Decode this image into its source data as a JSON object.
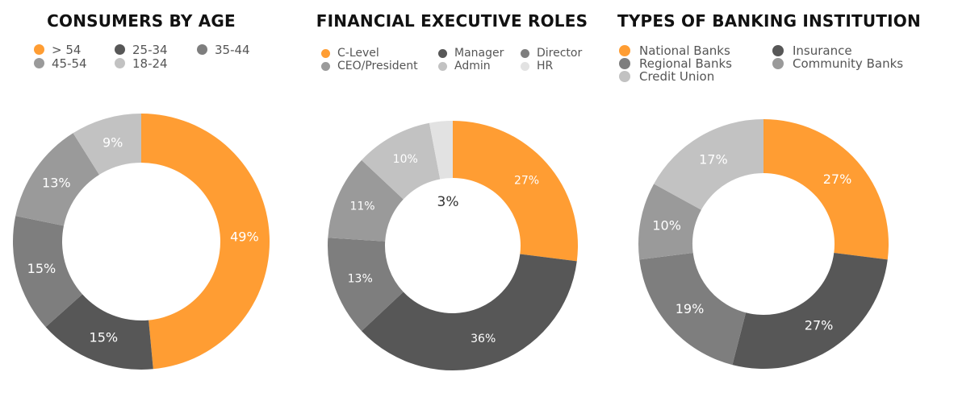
{
  "chart_data": [
    {
      "type": "pie",
      "title": "CONSUMERS BY AGE",
      "categories": [
        "> 54",
        "25-34",
        "35-44",
        "45-54",
        "18-24"
      ],
      "legend_order": [
        "> 54",
        "25-34",
        "35-44",
        "45-54",
        "18-24"
      ],
      "values": [
        49,
        15,
        15,
        13,
        9
      ],
      "labels": [
        "49%",
        "15%",
        "15%",
        "13%",
        "9%"
      ],
      "colors": [
        "#ff9d33",
        "#575757",
        "#7e7e7e",
        "#9a9a9a",
        "#c2c2c2"
      ],
      "legend_placement": "top"
    },
    {
      "type": "pie",
      "title": "FINANCIAL EXECUTIVE ROLES",
      "categories": [
        "C-Level",
        "Manager",
        "Director",
        "CEO/President",
        "Admin",
        "HR"
      ],
      "legend_order": [
        "C-Level",
        "Manager",
        "Director",
        "CEO/President",
        "Admin",
        "HR"
      ],
      "values": [
        27,
        36,
        13,
        11,
        10,
        3
      ],
      "labels": [
        "27%",
        "36%",
        "13%",
        "11%",
        "10%",
        "3%"
      ],
      "colors": [
        "#ff9d33",
        "#575757",
        "#7e7e7e",
        "#9a9a9a",
        "#c2c2c2",
        "#e2e2e2"
      ],
      "legend_placement": "top"
    },
    {
      "type": "pie",
      "title": "TYPES OF BANKING INSTITUTION",
      "categories": [
        "National Banks",
        "Insurance",
        "Regional Banks",
        "Community Banks",
        "Credit Union"
      ],
      "legend_order": [
        "National Banks",
        "Insurance",
        "Regional Banks",
        "Community Banks",
        "Credit Union"
      ],
      "values": [
        27,
        27,
        19,
        10,
        17
      ],
      "labels": [
        "27%",
        "27%",
        "19%",
        "10%",
        "17%"
      ],
      "colors": [
        "#ff9d33",
        "#575757",
        "#7e7e7e",
        "#9a9a9a",
        "#c2c2c2"
      ],
      "legend_placement": "top"
    }
  ]
}
